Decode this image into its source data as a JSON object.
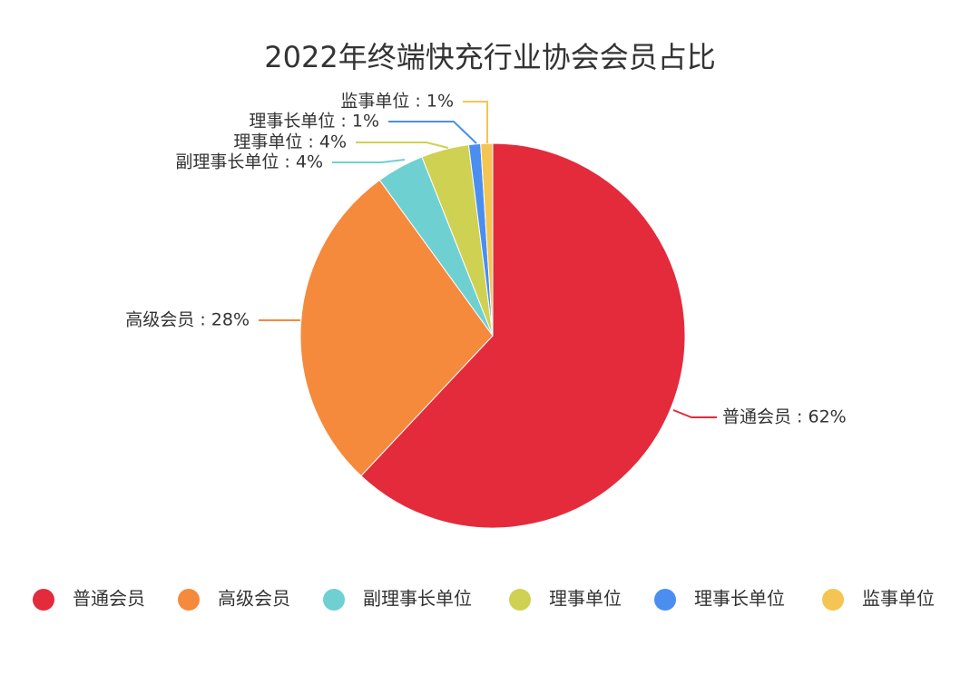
{
  "chart_data": {
    "type": "pie",
    "title": "2022年终端快充行业协会会员占比",
    "start": "top",
    "direction": "clockwise",
    "legend_position": "bottom",
    "slices": [
      {
        "name": "普通会员",
        "value": 62,
        "label": "普通会员 : 62%",
        "color": "#e32b3b"
      },
      {
        "name": "高级会员",
        "value": 28,
        "label": "高级会员 : 28%",
        "color": "#f58a3c"
      },
      {
        "name": "副理事长单位",
        "value": 4,
        "label": "副理事长单位 : 4%",
        "color": "#6fd0d2"
      },
      {
        "name": "理事单位",
        "value": 4,
        "label": "理事单位 : 4%",
        "color": "#cfd152"
      },
      {
        "name": "理事长单位",
        "value": 1,
        "label": "理事长单位 : 1%",
        "color": "#4a8ef0"
      },
      {
        "name": "监事单位",
        "value": 1,
        "label": "监事单位 : 1%",
        "color": "#f4c552"
      }
    ]
  }
}
